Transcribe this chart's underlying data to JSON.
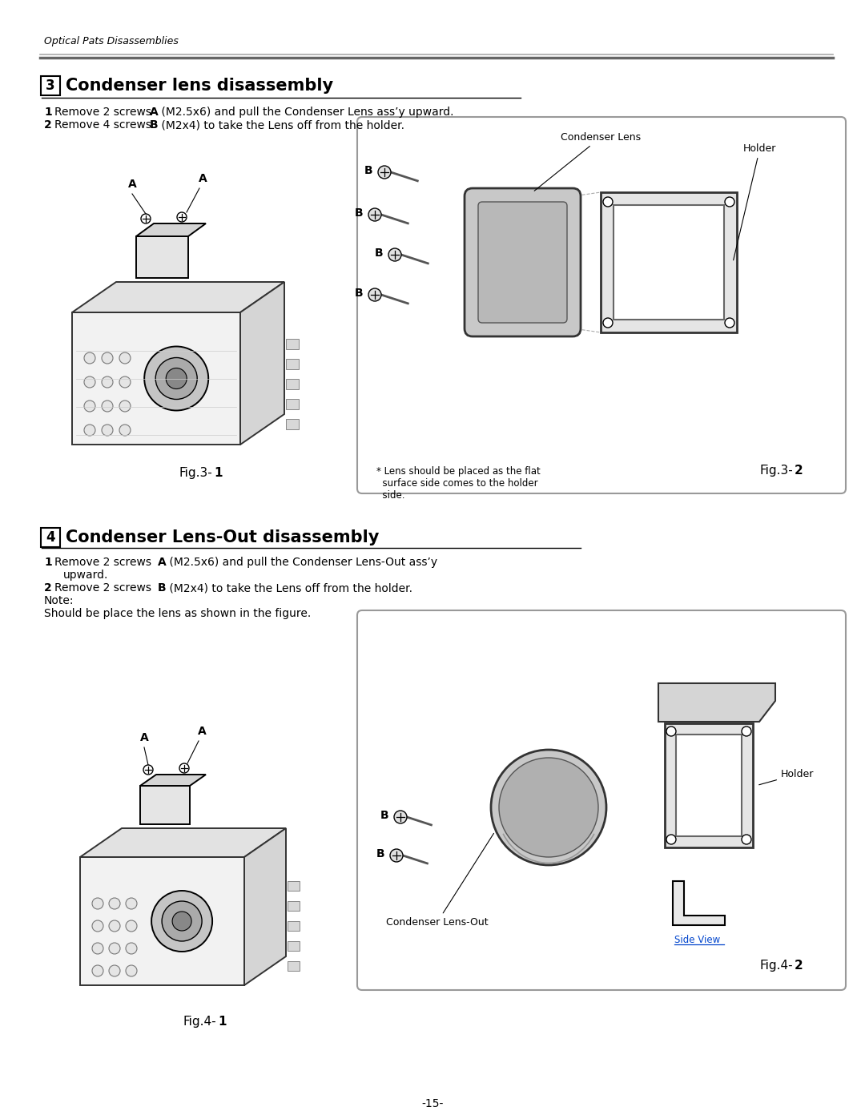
{
  "page_title": "Optical Pats Disassemblies",
  "section3_title": "Condenser lens disassembly",
  "section3_num": "3",
  "section3_step1_pre": "Remove 2 screws ",
  "section3_step1_bold": "A",
  "section3_step1_post": " (M2.5x6) and pull the Condenser Lens ass’y upward.",
  "section3_step2_pre": "Remove 4 screws ",
  "section3_step2_bold": "B",
  "section3_step2_post": " (M2x4) to take the Lens off from the holder.",
  "fig3_1_label": "Fig.3-",
  "fig3_1_num": "1",
  "fig3_2_label": "Fig.3-",
  "fig3_2_num": "2",
  "fig3_2_note_line1": "* Lens should be placed as the flat",
  "fig3_2_note_line2": "  surface side comes to the holder",
  "fig3_2_note_line3": "  side.",
  "fig3_2_condenser_lens": "Condenser Lens",
  "fig3_2_holder": "Holder",
  "section4_title": "Condenser Lens-Out disassembly",
  "section4_num": "4",
  "section4_step1_pre": "Remove 2 screws ",
  "section4_step1_bold": "A",
  "section4_step1_post": " (M2.5x6) and pull the Condenser Lens-Out ass’y",
  "section4_step1_cont": "upward.",
  "section4_step2_pre": "Remove 2 screws ",
  "section4_step2_bold": "B",
  "section4_step2_post": " (M2x4) to take the Lens off from the holder.",
  "section4_note1": "Note:",
  "section4_note2": "Should be place the lens as shown in the figure.",
  "fig4_1_label": "Fig.4-",
  "fig4_1_num": "1",
  "fig4_2_label": "Fig.4-",
  "fig4_2_num": "2",
  "fig4_2_holder": "Holder",
  "fig4_2_condenser_lensout": "Condenser Lens-Out",
  "fig4_2_sideview": "Side View",
  "page_num": "-15-",
  "bg_color": "#ffffff",
  "text_color": "#000000",
  "gray_light": "#f2f2f2",
  "gray_mid": "#d5d5d5",
  "gray_dark": "#888888",
  "box_edge": "#333333",
  "screw_fill": "#e0e0e0"
}
